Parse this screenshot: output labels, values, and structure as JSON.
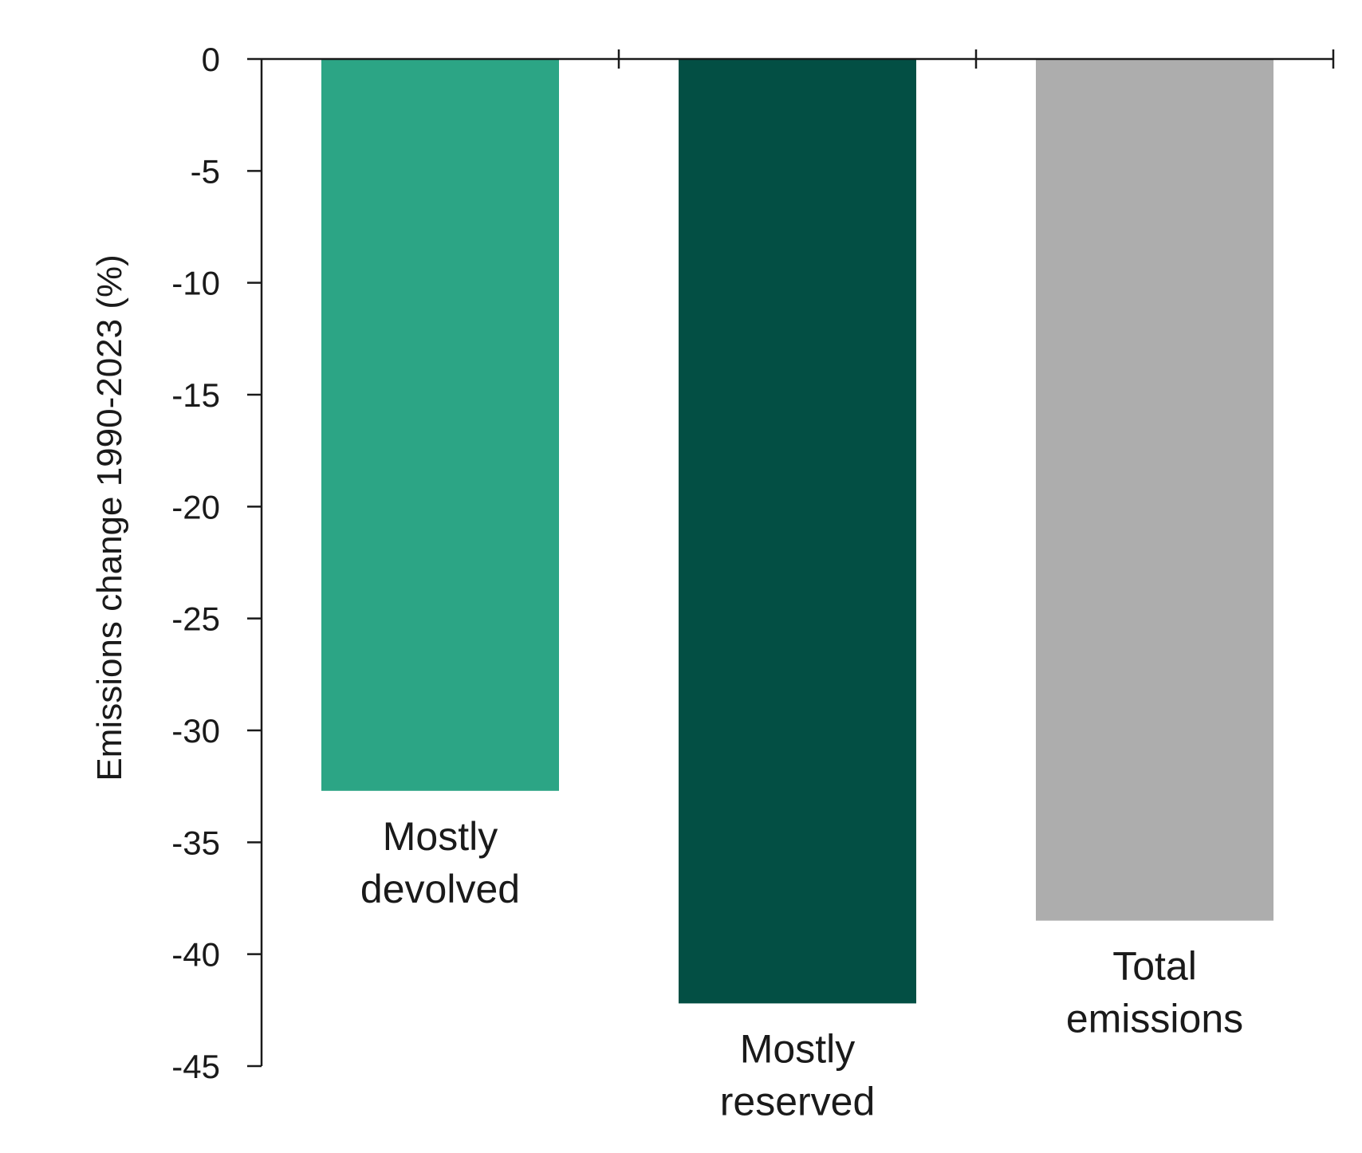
{
  "chart_data": {
    "type": "bar",
    "title": "",
    "xlabel": "",
    "ylabel": "Emissions change 1990-2023 (%)",
    "ylim": [
      -45,
      0
    ],
    "yticks": [
      0,
      -5,
      -10,
      -15,
      -20,
      -25,
      -30,
      -35,
      -40,
      -45
    ],
    "ytick_labels": [
      "0",
      "-5",
      "-10",
      "-15",
      "-20",
      "-25",
      "-30",
      "-35",
      "-40",
      "-45"
    ],
    "grid": false,
    "categories": [
      {
        "lines": [
          "Mostly",
          "devolved"
        ]
      },
      {
        "lines": [
          "Mostly",
          "reserved"
        ]
      },
      {
        "lines": [
          "Total",
          "emissions"
        ]
      }
    ],
    "values": [
      -32.7,
      -42.2,
      -38.5
    ],
    "colors": [
      "#2ca585",
      "#034f44",
      "#adadad"
    ]
  }
}
